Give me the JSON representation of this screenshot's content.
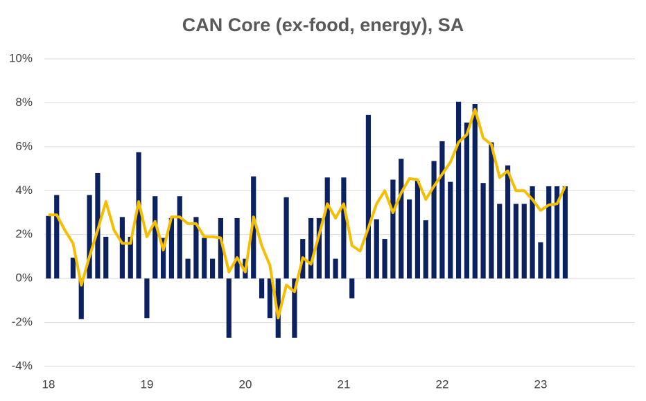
{
  "chart_data": {
    "type": "bar",
    "title": "CAN Core (ex-food, energy), SA",
    "categories": [
      "18",
      null,
      null,
      null,
      null,
      null,
      null,
      null,
      null,
      null,
      null,
      null,
      "19",
      null,
      null,
      null,
      null,
      null,
      null,
      null,
      null,
      null,
      null,
      null,
      "20",
      null,
      null,
      null,
      null,
      null,
      null,
      null,
      null,
      null,
      null,
      null,
      "21",
      null,
      null,
      null,
      null,
      null,
      null,
      null,
      null,
      null,
      null,
      null,
      "22",
      null,
      null,
      null,
      null,
      null,
      null,
      null,
      null,
      null,
      null,
      null,
      "23",
      null,
      null,
      null,
      null,
      null,
      null,
      null,
      null,
      null,
      null,
      null
    ],
    "series": [
      {
        "type": "bar",
        "color": "#0b2160",
        "values": [
          2.85,
          3.8,
          0,
          0.95,
          -1.85,
          3.8,
          4.8,
          1.9,
          0,
          2.8,
          1.9,
          5.75,
          -1.8,
          3.75,
          1.85,
          2.75,
          3.75,
          0.9,
          2.8,
          1.85,
          0.9,
          2.75,
          -2.7,
          2.75,
          0.9,
          4.65,
          -0.9,
          -1.8,
          -2.7,
          3.7,
          -2.7,
          1.8,
          2.75,
          2.75,
          4.6,
          0.9,
          4.6,
          -0.9,
          0,
          7.45,
          2.7,
          1.8,
          4.5,
          5.45,
          3.6,
          4.45,
          2.65,
          5.35,
          6.25,
          4.4,
          8.05,
          7.1,
          7.95,
          4.35,
          6.2,
          3.4,
          5.15,
          3.4,
          3.4,
          4.2,
          1.65,
          4.2,
          4.2,
          4.2,
          null,
          null,
          null,
          null,
          null,
          null,
          null,
          null
        ]
      },
      {
        "type": "line",
        "color": "#f6be00",
        "values": [
          2.9,
          2.9,
          2.2,
          1.6,
          -0.3,
          1.0,
          2.2,
          3.5,
          2.2,
          1.6,
          1.6,
          3.5,
          1.9,
          2.6,
          1.3,
          2.8,
          2.8,
          2.5,
          2.5,
          1.9,
          1.9,
          1.85,
          0.3,
          0.95,
          0.3,
          2.8,
          1.5,
          0.6,
          -1.8,
          -0.3,
          -0.6,
          0.95,
          0.65,
          2.0,
          3.4,
          2.75,
          3.4,
          1.5,
          1.25,
          2.3,
          3.4,
          4.0,
          3.0,
          3.9,
          4.55,
          4.5,
          3.6,
          4.2,
          4.75,
          5.3,
          6.2,
          6.55,
          7.7,
          6.4,
          6.1,
          4.6,
          4.9,
          4.0,
          4.0,
          3.6,
          3.1,
          3.35,
          3.4,
          4.2,
          null,
          null,
          null,
          null,
          null,
          null,
          null,
          null
        ]
      }
    ],
    "ylim": [
      -4,
      10
    ],
    "yticks": [
      {
        "value": -4,
        "label": "-4%"
      },
      {
        "value": -2,
        "label": "-2%"
      },
      {
        "value": 0,
        "label": "0%"
      },
      {
        "value": 2,
        "label": "2%"
      },
      {
        "value": 4,
        "label": "4%"
      },
      {
        "value": 6,
        "label": "6%"
      },
      {
        "value": 8,
        "label": "8%"
      },
      {
        "value": 10,
        "label": "10%"
      }
    ],
    "grid": true
  }
}
